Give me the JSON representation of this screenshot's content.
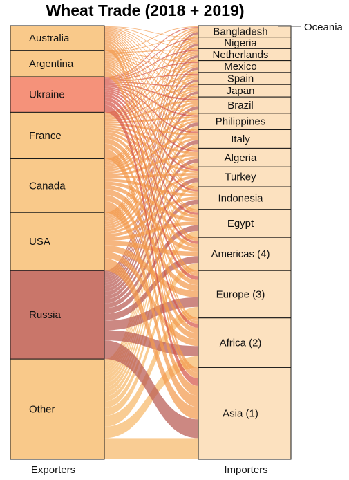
{
  "title": "Wheat Trade (2018 + 2019)",
  "colors": {
    "base": "#f9c98a",
    "ukraine": "#f5927a",
    "russia": "#c9766a",
    "flow_light": "#f7b86a",
    "flow_orange": "#f29a4e",
    "flow_red": "#d6564a",
    "flow_darkred": "#b85a52",
    "stroke": "#1a1a1a"
  },
  "axis": {
    "left_label": "Exporters",
    "right_label": "Importers"
  },
  "exporters": [
    {
      "label": "Australia",
      "share": 0.058,
      "color": "base"
    },
    {
      "label": "Argentina",
      "share": 0.06,
      "color": "base"
    },
    {
      "label": "Ukraine",
      "share": 0.082,
      "color": "ukraine"
    },
    {
      "label": "France",
      "share": 0.107,
      "color": "base"
    },
    {
      "label": "Canada",
      "share": 0.124,
      "color": "base"
    },
    {
      "label": "USA",
      "share": 0.134,
      "color": "base"
    },
    {
      "label": "Russia",
      "share": 0.204,
      "color": "russia"
    },
    {
      "label": "Other",
      "share": 0.231,
      "color": "base"
    }
  ],
  "importers": [
    {
      "label": "Bangladesh",
      "share": 0.026
    },
    {
      "label": "Nigeria",
      "share": 0.026
    },
    {
      "label": "Netherlands",
      "share": 0.027
    },
    {
      "label": "Mexico",
      "share": 0.027
    },
    {
      "label": "Spain",
      "share": 0.027
    },
    {
      "label": "Japan",
      "share": 0.028
    },
    {
      "label": "Brazil",
      "share": 0.037
    },
    {
      "label": "Philippines",
      "share": 0.037
    },
    {
      "label": "Italy",
      "share": 0.042
    },
    {
      "label": "Algeria",
      "share": 0.042
    },
    {
      "label": "Turkey",
      "share": 0.045
    },
    {
      "label": "Indonesia",
      "share": 0.051
    },
    {
      "label": "Egypt",
      "share": 0.063
    },
    {
      "label": "Americas (4)",
      "share": 0.075
    },
    {
      "label": "Europe (3)",
      "share": 0.107
    },
    {
      "label": "Africa (2)",
      "share": 0.112
    },
    {
      "label": "Asia (1)",
      "share": 0.207
    }
  ],
  "oceania_label": "Oceania"
}
